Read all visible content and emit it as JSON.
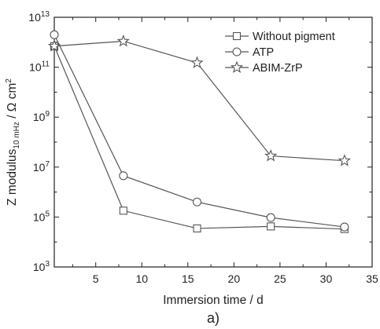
{
  "chart_data": {
    "type": "line",
    "xlabel": "Immersion time / d",
    "ylabel": {
      "prefix": "Z modulus",
      "subscript": "10 mHz",
      "suffix": " / Ω cm",
      "superscript": "2"
    },
    "caption": "a)",
    "xlim": [
      0.5,
      35
    ],
    "ylim": [
      1000,
      10000000000000
    ],
    "yscale": "log",
    "xticks": [
      5,
      10,
      15,
      20,
      25,
      30,
      35
    ],
    "yticks": [
      {
        "value": 1000,
        "base": "10",
        "exp": "3"
      },
      {
        "value": 100000,
        "base": "10",
        "exp": "5"
      },
      {
        "value": 10000000,
        "base": "10",
        "exp": "7"
      },
      {
        "value": 1000000000,
        "base": "10",
        "exp": "9"
      },
      {
        "value": 100000000000,
        "base": "10",
        "exp": "11"
      },
      {
        "value": 10000000000000,
        "base": "10",
        "exp": "13"
      }
    ],
    "grid": false,
    "legend_position": "top-right",
    "series": [
      {
        "name": "Without pigment",
        "marker": "square",
        "x": [
          0.5,
          8,
          16,
          24,
          32
        ],
        "y": [
          700000000000,
          180000,
          35000,
          42000,
          33000
        ]
      },
      {
        "name": "ATP",
        "marker": "circle",
        "x": [
          0.5,
          8,
          16,
          24,
          32
        ],
        "y": [
          2000000000000,
          4500000,
          400000,
          95000,
          40000
        ]
      },
      {
        "name": "ABIM-ZrP",
        "marker": "star",
        "x": [
          0.5,
          8,
          16,
          24,
          32
        ],
        "y": [
          700000000000,
          1100000000000,
          150000000000,
          28000000,
          18000000
        ]
      }
    ],
    "colors": {
      "line": "#555555",
      "marker_stroke": "#555555",
      "marker_fill": "#ffffff",
      "axis": "#222222"
    }
  }
}
